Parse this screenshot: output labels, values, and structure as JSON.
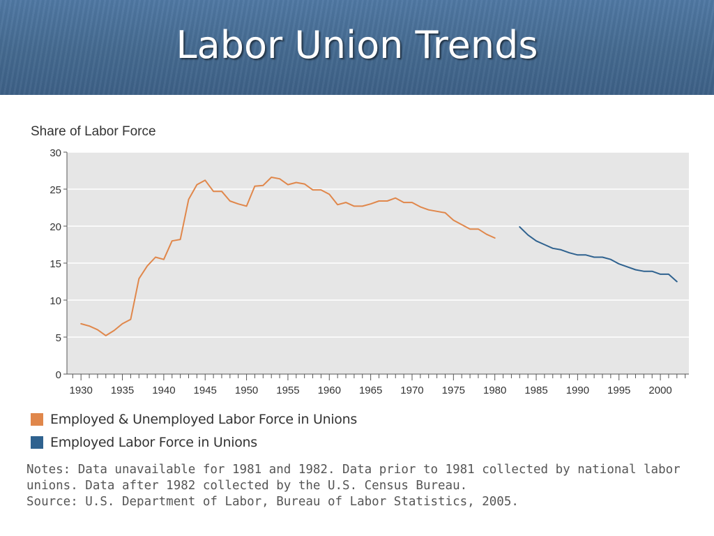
{
  "slide": {
    "title": "Labor Union Trends"
  },
  "chart_data": {
    "type": "line",
    "ylabel": "Share of Labor Force",
    "xlabel": "",
    "xlim": [
      1929,
      2004
    ],
    "ylim": [
      0,
      30
    ],
    "yticks": [
      "0",
      "5",
      "10",
      "15",
      "20",
      "25",
      "30"
    ],
    "xtick_labels": [
      "1930",
      "1935",
      "1940",
      "1945",
      "1950",
      "1955",
      "1960",
      "1965",
      "1970",
      "1975",
      "1980",
      "1985",
      "1990",
      "1995",
      "2000"
    ],
    "grid": true,
    "legend_position": "bottom-left",
    "series": [
      {
        "name": "Employed & Unemployed Labor Force in Unions",
        "color": "#e0874b",
        "x": [
          1930,
          1931,
          1932,
          1933,
          1934,
          1935,
          1936,
          1937,
          1938,
          1939,
          1940,
          1941,
          1942,
          1943,
          1944,
          1945,
          1946,
          1947,
          1948,
          1949,
          1950,
          1951,
          1952,
          1953,
          1954,
          1955,
          1956,
          1957,
          1958,
          1959,
          1960,
          1961,
          1962,
          1963,
          1964,
          1965,
          1966,
          1967,
          1968,
          1969,
          1970,
          1971,
          1972,
          1973,
          1974,
          1975,
          1976,
          1977,
          1978,
          1979,
          1980
        ],
        "y": [
          6.8,
          6.5,
          6.0,
          5.2,
          5.9,
          6.8,
          7.4,
          12.9,
          14.6,
          15.8,
          15.5,
          18.0,
          18.2,
          23.6,
          25.6,
          26.2,
          24.7,
          24.7,
          23.4,
          23.0,
          22.7,
          25.4,
          25.5,
          26.6,
          26.4,
          25.6,
          25.9,
          25.7,
          24.9,
          24.9,
          24.3,
          22.9,
          23.2,
          22.7,
          22.7,
          23.0,
          23.4,
          23.4,
          23.8,
          23.2,
          23.2,
          22.6,
          22.2,
          22.0,
          21.8,
          20.8,
          20.2,
          19.6,
          19.6,
          18.9,
          18.4
        ]
      },
      {
        "name": "Employed Labor Force in Unions",
        "color": "#2f628f",
        "x": [
          1983,
          1984,
          1985,
          1986,
          1987,
          1988,
          1989,
          1990,
          1991,
          1992,
          1993,
          1994,
          1995,
          1996,
          1997,
          1998,
          1999,
          2000,
          2001,
          2002
        ],
        "y": [
          19.9,
          18.8,
          18.0,
          17.5,
          17.0,
          16.8,
          16.4,
          16.1,
          16.1,
          15.8,
          15.8,
          15.5,
          14.9,
          14.5,
          14.1,
          13.9,
          13.9,
          13.5,
          13.5,
          12.5
        ]
      }
    ]
  },
  "notes": {
    "line1": "Notes: Data unavailable for 1981 and 1982. Data prior to 1981 collected by national labor",
    "line2": "unions. Data after 1982 collected by the U.S. Census Bureau.",
    "line3": "Source: U.S. Department of Labor, Bureau of Labor Statistics, 2005."
  }
}
